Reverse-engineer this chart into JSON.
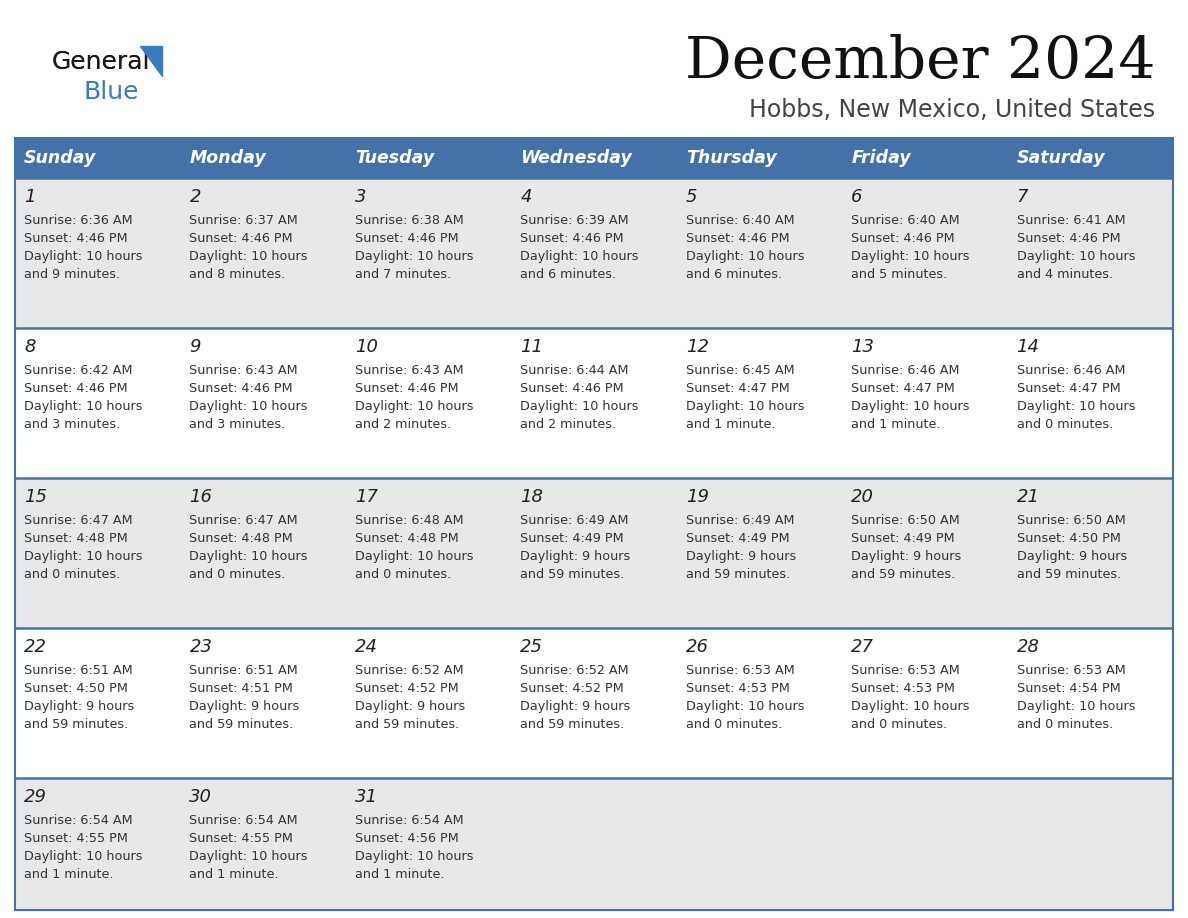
{
  "title": "December 2024",
  "subtitle": "Hobbs, New Mexico, United States",
  "header_color": "#4472a8",
  "header_text_color": "#ffffff",
  "cell_bg_light": "#e8e8e8",
  "cell_bg_white": "#ffffff",
  "divider_color": "#4472a8",
  "text_color": "#333333",
  "day_headers": [
    "Sunday",
    "Monday",
    "Tuesday",
    "Wednesday",
    "Thursday",
    "Friday",
    "Saturday"
  ],
  "days": [
    {
      "day": 1,
      "col": 0,
      "row": 0,
      "sunrise": "6:36 AM",
      "sunset": "4:46 PM",
      "daylight": "10 hours and 9 minutes."
    },
    {
      "day": 2,
      "col": 1,
      "row": 0,
      "sunrise": "6:37 AM",
      "sunset": "4:46 PM",
      "daylight": "10 hours and 8 minutes."
    },
    {
      "day": 3,
      "col": 2,
      "row": 0,
      "sunrise": "6:38 AM",
      "sunset": "4:46 PM",
      "daylight": "10 hours and 7 minutes."
    },
    {
      "day": 4,
      "col": 3,
      "row": 0,
      "sunrise": "6:39 AM",
      "sunset": "4:46 PM",
      "daylight": "10 hours and 6 minutes."
    },
    {
      "day": 5,
      "col": 4,
      "row": 0,
      "sunrise": "6:40 AM",
      "sunset": "4:46 PM",
      "daylight": "10 hours and 6 minutes."
    },
    {
      "day": 6,
      "col": 5,
      "row": 0,
      "sunrise": "6:40 AM",
      "sunset": "4:46 PM",
      "daylight": "10 hours and 5 minutes."
    },
    {
      "day": 7,
      "col": 6,
      "row": 0,
      "sunrise": "6:41 AM",
      "sunset": "4:46 PM",
      "daylight": "10 hours and 4 minutes."
    },
    {
      "day": 8,
      "col": 0,
      "row": 1,
      "sunrise": "6:42 AM",
      "sunset": "4:46 PM",
      "daylight": "10 hours and 3 minutes."
    },
    {
      "day": 9,
      "col": 1,
      "row": 1,
      "sunrise": "6:43 AM",
      "sunset": "4:46 PM",
      "daylight": "10 hours and 3 minutes."
    },
    {
      "day": 10,
      "col": 2,
      "row": 1,
      "sunrise": "6:43 AM",
      "sunset": "4:46 PM",
      "daylight": "10 hours and 2 minutes."
    },
    {
      "day": 11,
      "col": 3,
      "row": 1,
      "sunrise": "6:44 AM",
      "sunset": "4:46 PM",
      "daylight": "10 hours and 2 minutes."
    },
    {
      "day": 12,
      "col": 4,
      "row": 1,
      "sunrise": "6:45 AM",
      "sunset": "4:47 PM",
      "daylight": "10 hours and 1 minute."
    },
    {
      "day": 13,
      "col": 5,
      "row": 1,
      "sunrise": "6:46 AM",
      "sunset": "4:47 PM",
      "daylight": "10 hours and 1 minute."
    },
    {
      "day": 14,
      "col": 6,
      "row": 1,
      "sunrise": "6:46 AM",
      "sunset": "4:47 PM",
      "daylight": "10 hours and 0 minutes."
    },
    {
      "day": 15,
      "col": 0,
      "row": 2,
      "sunrise": "6:47 AM",
      "sunset": "4:48 PM",
      "daylight": "10 hours and 0 minutes."
    },
    {
      "day": 16,
      "col": 1,
      "row": 2,
      "sunrise": "6:47 AM",
      "sunset": "4:48 PM",
      "daylight": "10 hours and 0 minutes."
    },
    {
      "day": 17,
      "col": 2,
      "row": 2,
      "sunrise": "6:48 AM",
      "sunset": "4:48 PM",
      "daylight": "10 hours and 0 minutes."
    },
    {
      "day": 18,
      "col": 3,
      "row": 2,
      "sunrise": "6:49 AM",
      "sunset": "4:49 PM",
      "daylight": "9 hours and 59 minutes."
    },
    {
      "day": 19,
      "col": 4,
      "row": 2,
      "sunrise": "6:49 AM",
      "sunset": "4:49 PM",
      "daylight": "9 hours and 59 minutes."
    },
    {
      "day": 20,
      "col": 5,
      "row": 2,
      "sunrise": "6:50 AM",
      "sunset": "4:49 PM",
      "daylight": "9 hours and 59 minutes."
    },
    {
      "day": 21,
      "col": 6,
      "row": 2,
      "sunrise": "6:50 AM",
      "sunset": "4:50 PM",
      "daylight": "9 hours and 59 minutes."
    },
    {
      "day": 22,
      "col": 0,
      "row": 3,
      "sunrise": "6:51 AM",
      "sunset": "4:50 PM",
      "daylight": "9 hours and 59 minutes."
    },
    {
      "day": 23,
      "col": 1,
      "row": 3,
      "sunrise": "6:51 AM",
      "sunset": "4:51 PM",
      "daylight": "9 hours and 59 minutes."
    },
    {
      "day": 24,
      "col": 2,
      "row": 3,
      "sunrise": "6:52 AM",
      "sunset": "4:52 PM",
      "daylight": "9 hours and 59 minutes."
    },
    {
      "day": 25,
      "col": 3,
      "row": 3,
      "sunrise": "6:52 AM",
      "sunset": "4:52 PM",
      "daylight": "9 hours and 59 minutes."
    },
    {
      "day": 26,
      "col": 4,
      "row": 3,
      "sunrise": "6:53 AM",
      "sunset": "4:53 PM",
      "daylight": "10 hours and 0 minutes."
    },
    {
      "day": 27,
      "col": 5,
      "row": 3,
      "sunrise": "6:53 AM",
      "sunset": "4:53 PM",
      "daylight": "10 hours and 0 minutes."
    },
    {
      "day": 28,
      "col": 6,
      "row": 3,
      "sunrise": "6:53 AM",
      "sunset": "4:54 PM",
      "daylight": "10 hours and 0 minutes."
    },
    {
      "day": 29,
      "col": 0,
      "row": 4,
      "sunrise": "6:54 AM",
      "sunset": "4:55 PM",
      "daylight": "10 hours and 1 minute."
    },
    {
      "day": 30,
      "col": 1,
      "row": 4,
      "sunrise": "6:54 AM",
      "sunset": "4:55 PM",
      "daylight": "10 hours and 1 minute."
    },
    {
      "day": 31,
      "col": 2,
      "row": 4,
      "sunrise": "6:54 AM",
      "sunset": "4:56 PM",
      "daylight": "10 hours and 1 minute."
    }
  ],
  "logo_general_color": "#1a1a1a",
  "logo_blue_color": "#3a7abf",
  "logo_triangle_color": "#3a7abf"
}
